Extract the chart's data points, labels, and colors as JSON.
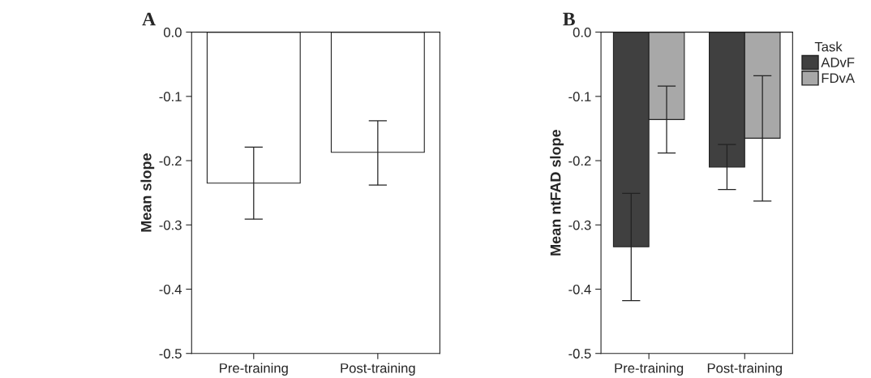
{
  "chart_data": [
    {
      "type": "bar",
      "title": "A",
      "ylabel": "Mean slope",
      "categories": [
        "Pre-training",
        "Post-training"
      ],
      "series": [
        {
          "color": "#ffffff",
          "values": [
            -0.235,
            -0.187
          ],
          "errors": [
            [
              -0.291,
              -0.179
            ],
            [
              -0.238,
              -0.138
            ]
          ]
        }
      ],
      "ylim": [
        -0.5,
        0.0
      ],
      "yticks": [
        {
          "value": -0.5,
          "label": "-0.5"
        },
        {
          "value": -0.4,
          "label": "-0.4"
        },
        {
          "value": -0.3,
          "label": "-0.3"
        },
        {
          "value": -0.2,
          "label": "-0.2"
        },
        {
          "value": -0.1,
          "label": "-0.1"
        },
        {
          "value": 0.0,
          "label": "0.0"
        }
      ],
      "grid": false,
      "legend": false
    },
    {
      "type": "bar",
      "title": "B",
      "ylabel": "Mean ntFAD slope",
      "legend_title": "Task",
      "categories": [
        "Pre-training",
        "Post-training"
      ],
      "series": [
        {
          "name": "ADvF",
          "color": "#404040",
          "values": [
            -0.334,
            -0.21
          ],
          "errors": [
            [
              -0.418,
              -0.251
            ],
            [
              -0.245,
              -0.175
            ]
          ]
        },
        {
          "name": "FDvA",
          "color": "#a8a8a8",
          "values": [
            -0.136,
            -0.165
          ],
          "errors": [
            [
              -0.188,
              -0.084
            ],
            [
              -0.263,
              -0.068
            ]
          ]
        }
      ],
      "ylim": [
        -0.5,
        0.0
      ],
      "yticks": [
        {
          "value": -0.5,
          "label": "-0.5"
        },
        {
          "value": -0.4,
          "label": "-0.4"
        },
        {
          "value": -0.3,
          "label": "-0.3"
        },
        {
          "value": -0.2,
          "label": "-0.2"
        },
        {
          "value": -0.1,
          "label": "-0.1"
        },
        {
          "value": 0.0,
          "label": "0.0"
        }
      ],
      "grid": false,
      "legend": "top right"
    }
  ]
}
